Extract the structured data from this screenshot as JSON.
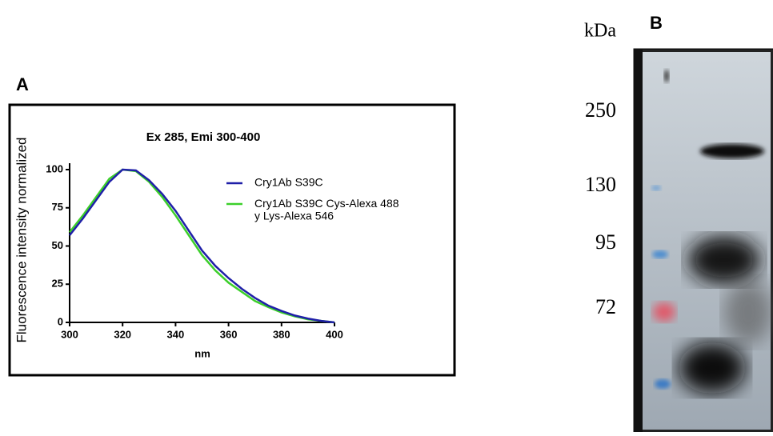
{
  "chart_data": {
    "type": "line",
    "panel_label": "A",
    "title": "Ex 285, Emi 300-400",
    "x_label": "nm",
    "y_label": "Fluorescence intensity normalized",
    "x": [
      300,
      305,
      310,
      315,
      320,
      325,
      330,
      335,
      340,
      345,
      350,
      355,
      360,
      365,
      370,
      375,
      380,
      385,
      390,
      395,
      400
    ],
    "series": [
      {
        "name": "Cry1Ab S39C",
        "color": "#1f1fa8",
        "values": [
          57,
          68,
          80,
          92,
          100,
          99.5,
          93,
          84,
          73,
          60,
          47,
          37,
          29,
          22,
          16,
          11,
          7.5,
          4.5,
          2.5,
          1,
          0
        ]
      },
      {
        "name": "Cry1Ab S39C Cys-Alexa 488\ny Lys-Alexa 546",
        "color": "#3ccf2a",
        "values": [
          59,
          70,
          82,
          94,
          100,
          99,
          92,
          82,
          70,
          57,
          44,
          34,
          26,
          20,
          14,
          10,
          6.5,
          4,
          2,
          1,
          0
        ]
      }
    ],
    "xlim": [
      300,
      400
    ],
    "xticks": [
      300,
      320,
      340,
      360,
      380,
      400
    ],
    "ylim": [
      0,
      100
    ],
    "yticks": [
      0,
      25,
      50,
      75,
      100
    ],
    "grid": false
  },
  "panel_b": {
    "panel_label": "B",
    "unit": "kDa",
    "markers": [
      "250",
      "130",
      "95",
      "72"
    ]
  }
}
